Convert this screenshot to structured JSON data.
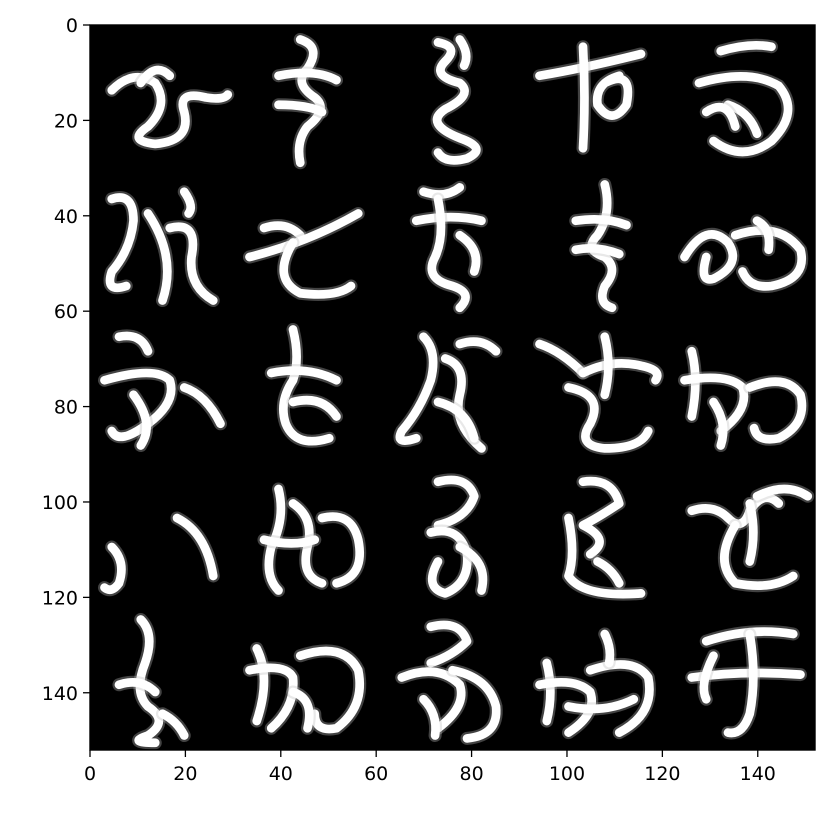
{
  "image": {
    "description_type": "grid of generated cursive kana glyph samples shown with matplotlib axes",
    "grid": {
      "rows": 5,
      "cols": 5
    },
    "pixel_extent": {
      "width": 152,
      "height": 152
    },
    "background_color": "#000000",
    "glyph_color": "#ffffff"
  },
  "axes": {
    "x_ticks": [
      "0",
      "20",
      "40",
      "60",
      "80",
      "100",
      "120",
      "140"
    ],
    "y_ticks": [
      "0",
      "20",
      "40",
      "60",
      "80",
      "100",
      "120",
      "140"
    ]
  }
}
